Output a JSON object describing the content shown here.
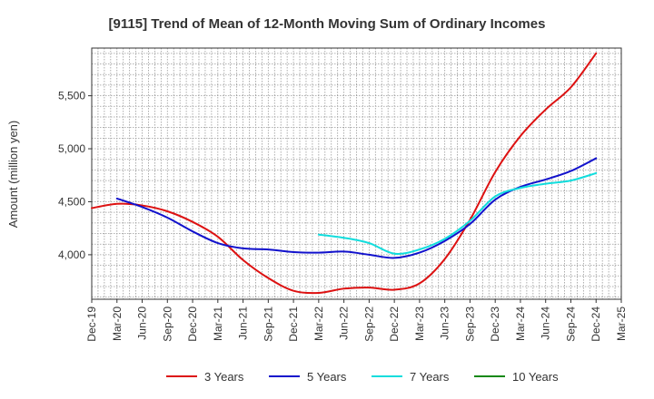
{
  "chart_data": {
    "type": "line",
    "title": "[9115]  Trend of Mean of 12-Month Moving Sum of Ordinary Incomes",
    "xlabel": "",
    "ylabel": "Amount (million yen)",
    "ylim": [
      3580,
      5950
    ],
    "y_ticks": [
      4000,
      4500,
      5000,
      5500
    ],
    "y_tick_labels": [
      "4,000",
      "4,500",
      "5,000",
      "5,500"
    ],
    "x_tick_labels": [
      "Dec-19",
      "Mar-20",
      "Jun-20",
      "Sep-20",
      "Dec-20",
      "Mar-21",
      "Jun-21",
      "Sep-21",
      "Dec-21",
      "Mar-22",
      "Jun-22",
      "Sep-22",
      "Dec-22",
      "Mar-23",
      "Jun-23",
      "Sep-23",
      "Dec-23",
      "Mar-24",
      "Jun-24",
      "Sep-24",
      "Dec-24",
      "Mar-25"
    ],
    "grid": true,
    "legend_position": "bottom",
    "series": [
      {
        "name": "3 Years",
        "color": "#dd1111",
        "x": [
          0,
          1,
          2,
          3,
          4,
          5,
          6,
          7,
          8,
          9,
          10,
          11,
          12,
          13,
          14,
          15,
          16,
          17,
          18,
          19,
          20
        ],
        "values": [
          4440,
          4480,
          4465,
          4410,
          4310,
          4170,
          3950,
          3780,
          3660,
          3640,
          3680,
          3690,
          3670,
          3730,
          3960,
          4330,
          4780,
          5120,
          5370,
          5580,
          5900
        ]
      },
      {
        "name": "5 Years",
        "color": "#1111cc",
        "x": [
          1,
          2,
          3,
          4,
          5,
          6,
          7,
          8,
          9,
          10,
          11,
          12,
          13,
          14,
          15,
          16,
          17,
          18,
          19,
          20
        ],
        "values": [
          4530,
          4450,
          4350,
          4220,
          4110,
          4060,
          4050,
          4025,
          4020,
          4030,
          4000,
          3970,
          4020,
          4130,
          4290,
          4520,
          4640,
          4710,
          4790,
          4910
        ]
      },
      {
        "name": "7 Years",
        "color": "#11dddd",
        "x": [
          9,
          10,
          11,
          12,
          13,
          14,
          15,
          16,
          17,
          18,
          19,
          20
        ],
        "values": [
          4190,
          4160,
          4110,
          4010,
          4050,
          4150,
          4320,
          4550,
          4630,
          4670,
          4700,
          4770
        ]
      },
      {
        "name": "10 Years",
        "color": "#118811",
        "x": [],
        "values": []
      }
    ]
  }
}
